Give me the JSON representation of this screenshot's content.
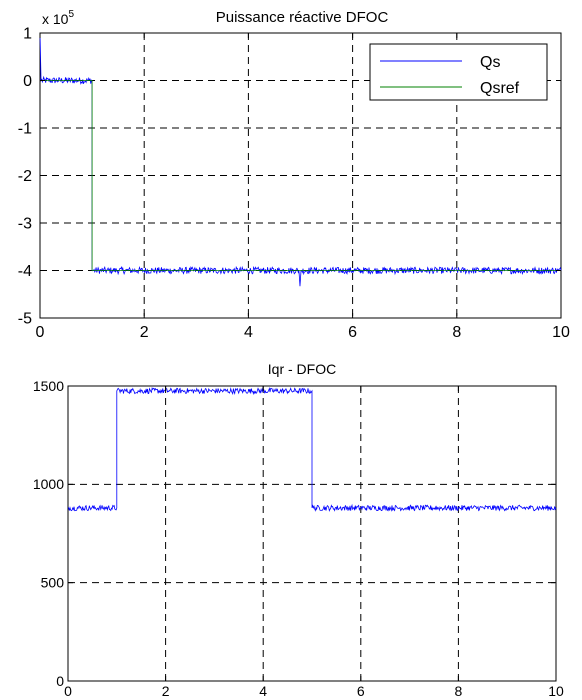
{
  "chart_data": [
    {
      "type": "line",
      "title": "Puissance  réactive DFOC",
      "exponent_label": {
        "prefix": "x 10",
        "power": "5"
      },
      "xlim": [
        0,
        10
      ],
      "ylim": [
        -5,
        1
      ],
      "x_ticks": [
        0,
        2,
        4,
        6,
        8,
        10
      ],
      "y_ticks": [
        1,
        0,
        -1,
        -2,
        -3,
        -4,
        -5
      ],
      "grid": true,
      "legend_position": "top-right",
      "series": [
        {
          "name": "Qs",
          "color": "#0000ff",
          "noisy": true,
          "noise_amplitude": 0.07,
          "x": [
            0,
            0.02,
            1,
            1,
            4.97,
            4.99,
            5.01,
            10
          ],
          "y": [
            1,
            0,
            0,
            -4,
            -4,
            -4.33,
            -4,
            -4
          ]
        },
        {
          "name": "Qsref",
          "color": "#008000",
          "noisy": false,
          "x": [
            0,
            1,
            1,
            10
          ],
          "y": [
            0,
            0,
            -4,
            -4
          ]
        }
      ]
    },
    {
      "type": "line",
      "title": "Iqr - DFOC",
      "xlim": [
        0,
        10
      ],
      "ylim": [
        0,
        1500
      ],
      "x_ticks": [
        0,
        2,
        4,
        6,
        8,
        10
      ],
      "y_ticks": [
        0,
        500,
        1000,
        1500
      ],
      "grid": true,
      "series": [
        {
          "color": "#0000ff",
          "noisy": true,
          "noise_amplitude": 14,
          "x": [
            0,
            1,
            1,
            5,
            5,
            10
          ],
          "y": [
            880,
            880,
            1475,
            1475,
            880,
            880
          ]
        }
      ]
    }
  ]
}
